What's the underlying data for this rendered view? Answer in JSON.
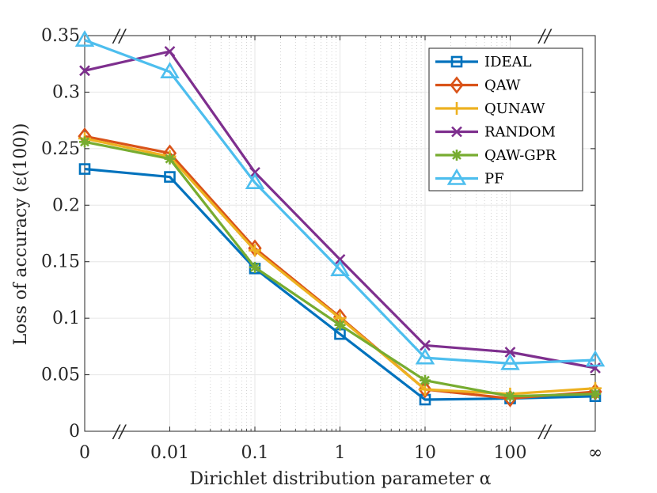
{
  "chart_data": {
    "type": "line",
    "title": "",
    "xlabel": "Dirichlet distribution parameter α",
    "ylabel": "Loss of accuracy (ε(100))",
    "categories": [
      "0",
      "0.01",
      "0.1",
      "1",
      "10",
      "100",
      "∞"
    ],
    "ylim": [
      0,
      0.35
    ],
    "yticks": [
      "0",
      "0.05",
      "0.1",
      "0.15",
      "0.2",
      "0.25",
      "0.3",
      "0.35"
    ],
    "grid": true,
    "legend_position": "top-right",
    "axis_break_marks": [
      "//",
      "//",
      "//",
      "//"
    ],
    "series": [
      {
        "name": "IDEAL",
        "color": "#0072BD",
        "marker": "square",
        "values": [
          0.232,
          0.225,
          0.144,
          0.086,
          0.028,
          0.029,
          0.031
        ]
      },
      {
        "name": "QAW",
        "color": "#D95319",
        "marker": "diamond",
        "values": [
          0.261,
          0.246,
          0.162,
          0.101,
          0.037,
          0.029,
          0.035
        ]
      },
      {
        "name": "QUNAW",
        "color": "#EDB120",
        "marker": "plus",
        "values": [
          0.259,
          0.243,
          0.16,
          0.1,
          0.037,
          0.033,
          0.038
        ]
      },
      {
        "name": "RANDOM",
        "color": "#7E2F8E",
        "marker": "x",
        "values": [
          0.319,
          0.336,
          0.229,
          0.152,
          0.076,
          0.07,
          0.056
        ]
      },
      {
        "name": "QAW-GPR",
        "color": "#77AC30",
        "marker": "asterisk",
        "values": [
          0.256,
          0.241,
          0.145,
          0.094,
          0.045,
          0.031,
          0.033
        ]
      },
      {
        "name": "PF",
        "color": "#4DBEEE",
        "marker": "triangle",
        "values": [
          0.346,
          0.318,
          0.22,
          0.143,
          0.065,
          0.06,
          0.063
        ]
      }
    ]
  }
}
